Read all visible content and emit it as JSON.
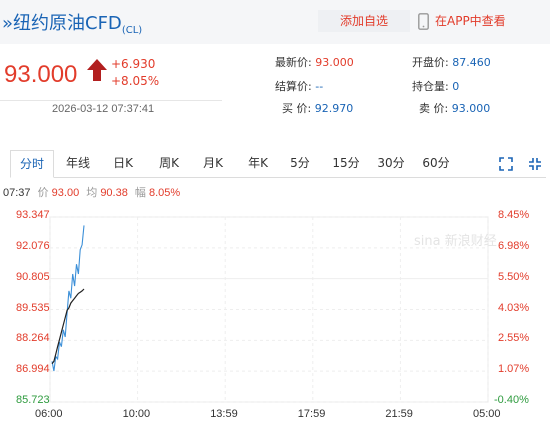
{
  "header": {
    "title": "纽约原油CFD",
    "code": "(CL)",
    "add_favorite": "添加自选",
    "app_link": "在APP中查看"
  },
  "quote": {
    "price": "93.000",
    "change": "+6.930",
    "change_pct": "+8.05%",
    "timestamp": "2026-03-12 07:37:41",
    "latest_label": "最新价:",
    "latest_value": "93.000",
    "open_label": "开盘价:",
    "open_value": "87.460",
    "settle_label": "结算价:",
    "settle_value": "--",
    "oi_label": "持仓量:",
    "oi_value": "0",
    "bid_label": "买 价:",
    "bid_value": "92.970",
    "ask_label": "卖 价:",
    "ask_value": "93.000"
  },
  "tabs": [
    "分时",
    "年线",
    "日K",
    "周K",
    "月K",
    "年K",
    "5分",
    "15分",
    "30分",
    "60分"
  ],
  "active_tab": "分时",
  "info_line": {
    "time": "07:37",
    "price_label": "价",
    "price": "93.00",
    "avg_label": "均",
    "avg": "90.38",
    "amp_label": "幅",
    "amp": "8.05%"
  },
  "watermark": "sina 新浪财经",
  "colors": {
    "up": "#e23c2b",
    "down": "#2e9b3e",
    "price_line": "#3b8fd8",
    "avg_line": "#222222",
    "link": "#1a64b5"
  },
  "chart_data": {
    "type": "line",
    "y_ticks": [
      "93.347",
      "92.076",
      "90.805",
      "89.535",
      "88.264",
      "86.994",
      "85.723"
    ],
    "y_pct_ticks": [
      "8.45%",
      "6.98%",
      "5.50%",
      "4.03%",
      "2.55%",
      "1.07%",
      "-0.40%"
    ],
    "x_ticks": [
      "06:00",
      "10:00",
      "13:59",
      "17:59",
      "21:59",
      "05:00"
    ],
    "ylim": [
      85.723,
      93.347
    ],
    "series": [
      {
        "values": [
          87.4,
          87.0,
          87.6,
          87.5,
          88.2,
          88.0,
          88.7,
          88.4,
          89.4,
          90.3,
          90.0,
          91.0,
          90.5,
          91.4,
          91.0,
          92.0,
          92.2,
          93.0
        ]
      },
      {
        "values": [
          87.3,
          87.4,
          87.7,
          88.0,
          88.3,
          88.6,
          88.9,
          89.2,
          89.5,
          89.6,
          89.8,
          89.9,
          90.0,
          90.1,
          90.2,
          90.25,
          90.3,
          90.38
        ]
      }
    ]
  }
}
